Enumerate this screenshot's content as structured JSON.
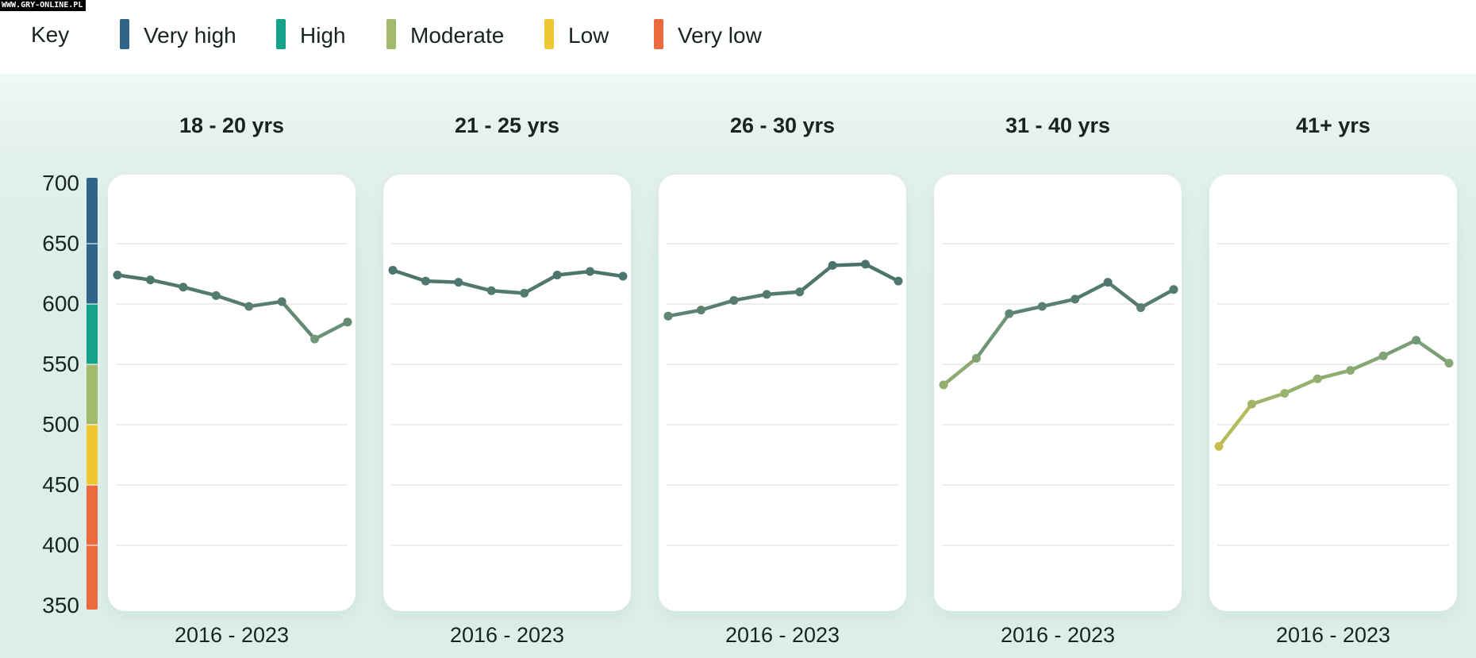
{
  "watermark": "WWW.GRY-ONLINE.PL",
  "key": {
    "label": "Key",
    "items": [
      {
        "label": "Very high",
        "color": "#2e6589"
      },
      {
        "label": "High",
        "color": "#14a389"
      },
      {
        "label": "Moderate",
        "color": "#a2ba6d"
      },
      {
        "label": "Low",
        "color": "#eec831"
      },
      {
        "label": "Very low",
        "color": "#ec6a3e"
      }
    ]
  },
  "axis": {
    "min": 350,
    "max": 700,
    "ticks": [
      700,
      650,
      600,
      550,
      500,
      450,
      400,
      350
    ],
    "bands": [
      {
        "from": 600,
        "to": 700,
        "label": "Very high",
        "color": "#2e6589"
      },
      {
        "from": 550,
        "to": 600,
        "label": "High",
        "color": "#14a389"
      },
      {
        "from": 500,
        "to": 550,
        "label": "Moderate",
        "color": "#a2ba6d"
      },
      {
        "from": 450,
        "to": 500,
        "label": "Low",
        "color": "#eec831"
      },
      {
        "from": 350,
        "to": 450,
        "label": "Very low",
        "color": "#ec6a3e"
      }
    ]
  },
  "chart_data": {
    "type": "line",
    "x": [
      2016,
      2017,
      2018,
      2019,
      2020,
      2021,
      2022,
      2023
    ],
    "x_label": "2016 - 2023",
    "ylim": [
      350,
      700
    ],
    "gridlines": [
      650,
      600,
      550,
      500,
      450,
      400
    ],
    "grid_on": true,
    "legend_position": "top",
    "series": [
      {
        "name": "18 - 20 yrs",
        "values": [
          624,
          620,
          614,
          607,
          598,
          602,
          571,
          585
        ]
      },
      {
        "name": "21 - 25 yrs",
        "values": [
          628,
          619,
          618,
          611,
          609,
          624,
          627,
          623
        ]
      },
      {
        "name": "26 - 30 yrs",
        "values": [
          590,
          595,
          603,
          608,
          610,
          632,
          633,
          619
        ]
      },
      {
        "name": "31 - 40 yrs",
        "values": [
          533,
          555,
          592,
          598,
          604,
          618,
          597,
          612
        ]
      },
      {
        "name": "41+ yrs",
        "values": [
          482,
          517,
          526,
          538,
          545,
          557,
          570,
          551
        ]
      }
    ],
    "line_color_stops": [
      [
        478,
        "#cac04c"
      ],
      [
        515,
        "#a3b768"
      ],
      [
        545,
        "#8cab72"
      ],
      [
        572,
        "#71967a"
      ],
      [
        598,
        "#587f70"
      ],
      [
        635,
        "#48716a"
      ]
    ]
  }
}
